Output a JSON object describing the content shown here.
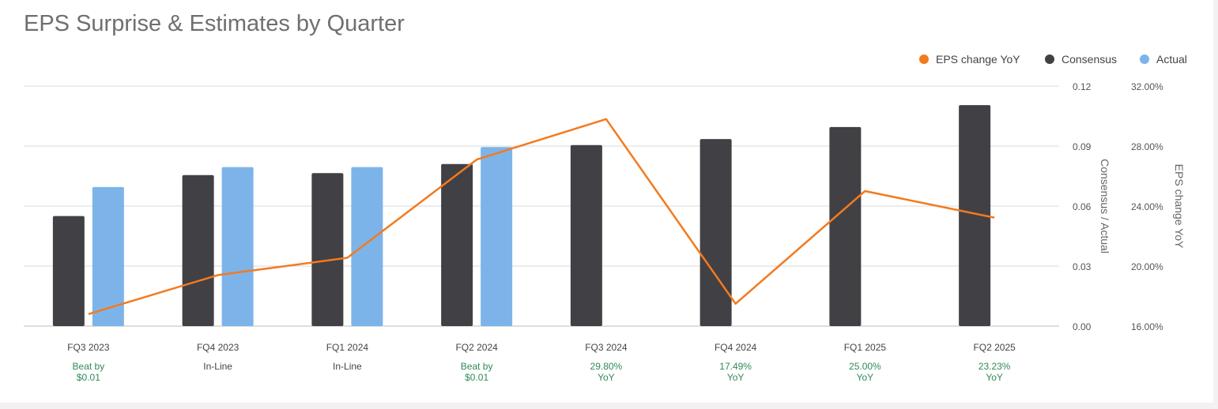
{
  "title": "EPS Surprise & Estimates by Quarter",
  "legend": [
    {
      "label": "EPS change YoY",
      "color": "#f37a1f"
    },
    {
      "label": "Consensus",
      "color": "#414045"
    },
    {
      "label": "Actual",
      "color": "#7cb4ea"
    }
  ],
  "chart_data": {
    "type": "bar",
    "title": "EPS Surprise & Estimates by Quarter",
    "categories": [
      "FQ3 2023",
      "FQ4 2023",
      "FQ1 2024",
      "FQ2 2024",
      "FQ3 2024",
      "FQ4 2024",
      "FQ1 2025",
      "FQ2 2025"
    ],
    "series": [
      {
        "name": "Consensus",
        "type": "bar",
        "axis": "left",
        "color": "#414045",
        "values": [
          0.055,
          0.0755,
          0.0765,
          0.081,
          0.0905,
          0.0935,
          0.0995,
          0.1105
        ]
      },
      {
        "name": "Actual",
        "type": "bar",
        "axis": "left",
        "color": "#7cb4ea",
        "values": [
          0.0695,
          0.0795,
          0.0795,
          0.0895,
          null,
          null,
          null,
          null
        ]
      },
      {
        "name": "EPS change YoY",
        "type": "line",
        "axis": "right",
        "color": "#f37a1f",
        "values": [
          16.8,
          19.4,
          20.55,
          27.1,
          29.8,
          17.49,
          25.0,
          23.23
        ]
      }
    ],
    "left_axis": {
      "label": "Consensus / Actual",
      "range": [
        0,
        0.12
      ],
      "ticks": [
        "0.00",
        "0.03",
        "0.06",
        "0.09",
        "0.12"
      ]
    },
    "right_axis": {
      "label": "EPS change YoY",
      "range": [
        16,
        32
      ],
      "ticks": [
        "16.00%",
        "20.00%",
        "24.00%",
        "28.00%",
        "32.00%"
      ]
    },
    "annotations": [
      {
        "line1": "Beat by",
        "line2": "$0.01",
        "color": "#2e8b57"
      },
      {
        "line1": "In-Line",
        "line2": "",
        "color": "#444444"
      },
      {
        "line1": "In-Line",
        "line2": "",
        "color": "#444444"
      },
      {
        "line1": "Beat by",
        "line2": "$0.01",
        "color": "#2e8b57"
      },
      {
        "line1": "29.80%",
        "line2": "YoY",
        "color": "#2e8b57"
      },
      {
        "line1": "17.49%",
        "line2": "YoY",
        "color": "#2e8b57"
      },
      {
        "line1": "25.00%",
        "line2": "YoY",
        "color": "#2e8b57"
      },
      {
        "line1": "23.23%",
        "line2": "YoY",
        "color": "#2e8b57"
      }
    ],
    "grid": true,
    "legend_position": "top-right"
  }
}
